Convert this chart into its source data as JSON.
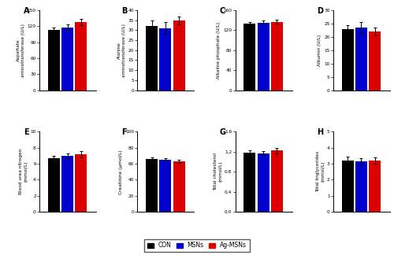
{
  "panels": [
    {
      "label": "A",
      "ylabel": "Aspartate\naminotransferase (U/L)",
      "values": [
        113,
        118,
        128
      ],
      "errors": [
        4,
        5,
        6
      ],
      "ylim": [
        0,
        150
      ],
      "yticks": [
        0,
        30,
        60,
        90,
        120,
        150
      ]
    },
    {
      "label": "B",
      "ylabel": "Alanine\naminotransferase (U/L)",
      "values": [
        32,
        31,
        35
      ],
      "errors": [
        3,
        3,
        2
      ],
      "ylim": [
        0,
        40
      ],
      "yticks": [
        0,
        5,
        10,
        15,
        20,
        25,
        30,
        35,
        40
      ]
    },
    {
      "label": "C",
      "ylabel": "Alkaline phosphate (U/L)",
      "values": [
        133,
        135,
        137
      ],
      "errors": [
        3,
        4,
        4
      ],
      "ylim": [
        0,
        160
      ],
      "yticks": [
        0,
        40,
        80,
        120,
        160
      ]
    },
    {
      "label": "D",
      "ylabel": "Albumin (U/L)",
      "values": [
        23,
        23.5,
        22
      ],
      "errors": [
        1.5,
        2,
        1.5
      ],
      "ylim": [
        0,
        30
      ],
      "yticks": [
        0,
        5,
        10,
        15,
        20,
        25,
        30
      ]
    },
    {
      "label": "E",
      "ylabel": "Blood urea nitrogen\n(mmol/L)",
      "values": [
        6.7,
        7.0,
        7.2
      ],
      "errors": [
        0.3,
        0.3,
        0.4
      ],
      "ylim": [
        0,
        10
      ],
      "yticks": [
        0,
        2,
        4,
        6,
        8,
        10
      ]
    },
    {
      "label": "F",
      "ylabel": "Creatinine (μmol/L)",
      "values": [
        66,
        65,
        63
      ],
      "errors": [
        2,
        2,
        2
      ],
      "ylim": [
        0,
        100
      ],
      "yticks": [
        0,
        20,
        40,
        60,
        80,
        100
      ]
    },
    {
      "label": "G",
      "ylabel": "Total cholesterol\n(mmol/L)",
      "values": [
        1.18,
        1.17,
        1.22
      ],
      "errors": [
        0.04,
        0.04,
        0.05
      ],
      "ylim": [
        0,
        1.6
      ],
      "yticks": [
        0,
        0.4,
        0.8,
        1.2,
        1.6
      ]
    },
    {
      "label": "H",
      "ylabel": "Total triglycerides\n(mmol/L)",
      "values": [
        3.2,
        3.15,
        3.2
      ],
      "errors": [
        0.25,
        0.2,
        0.2
      ],
      "ylim": [
        0,
        5
      ],
      "yticks": [
        0,
        1,
        2,
        3,
        4,
        5
      ]
    }
  ],
  "bar_colors": [
    "#000000",
    "#0000cc",
    "#dd0000"
  ],
  "group_labels": [
    "CON",
    "MSNs",
    "Ag-MSNs"
  ],
  "bar_width": 0.14,
  "x_positions": [
    0.22,
    0.38,
    0.54
  ],
  "xlim": [
    0.05,
    0.72
  ],
  "figure_bg": "#ffffff"
}
